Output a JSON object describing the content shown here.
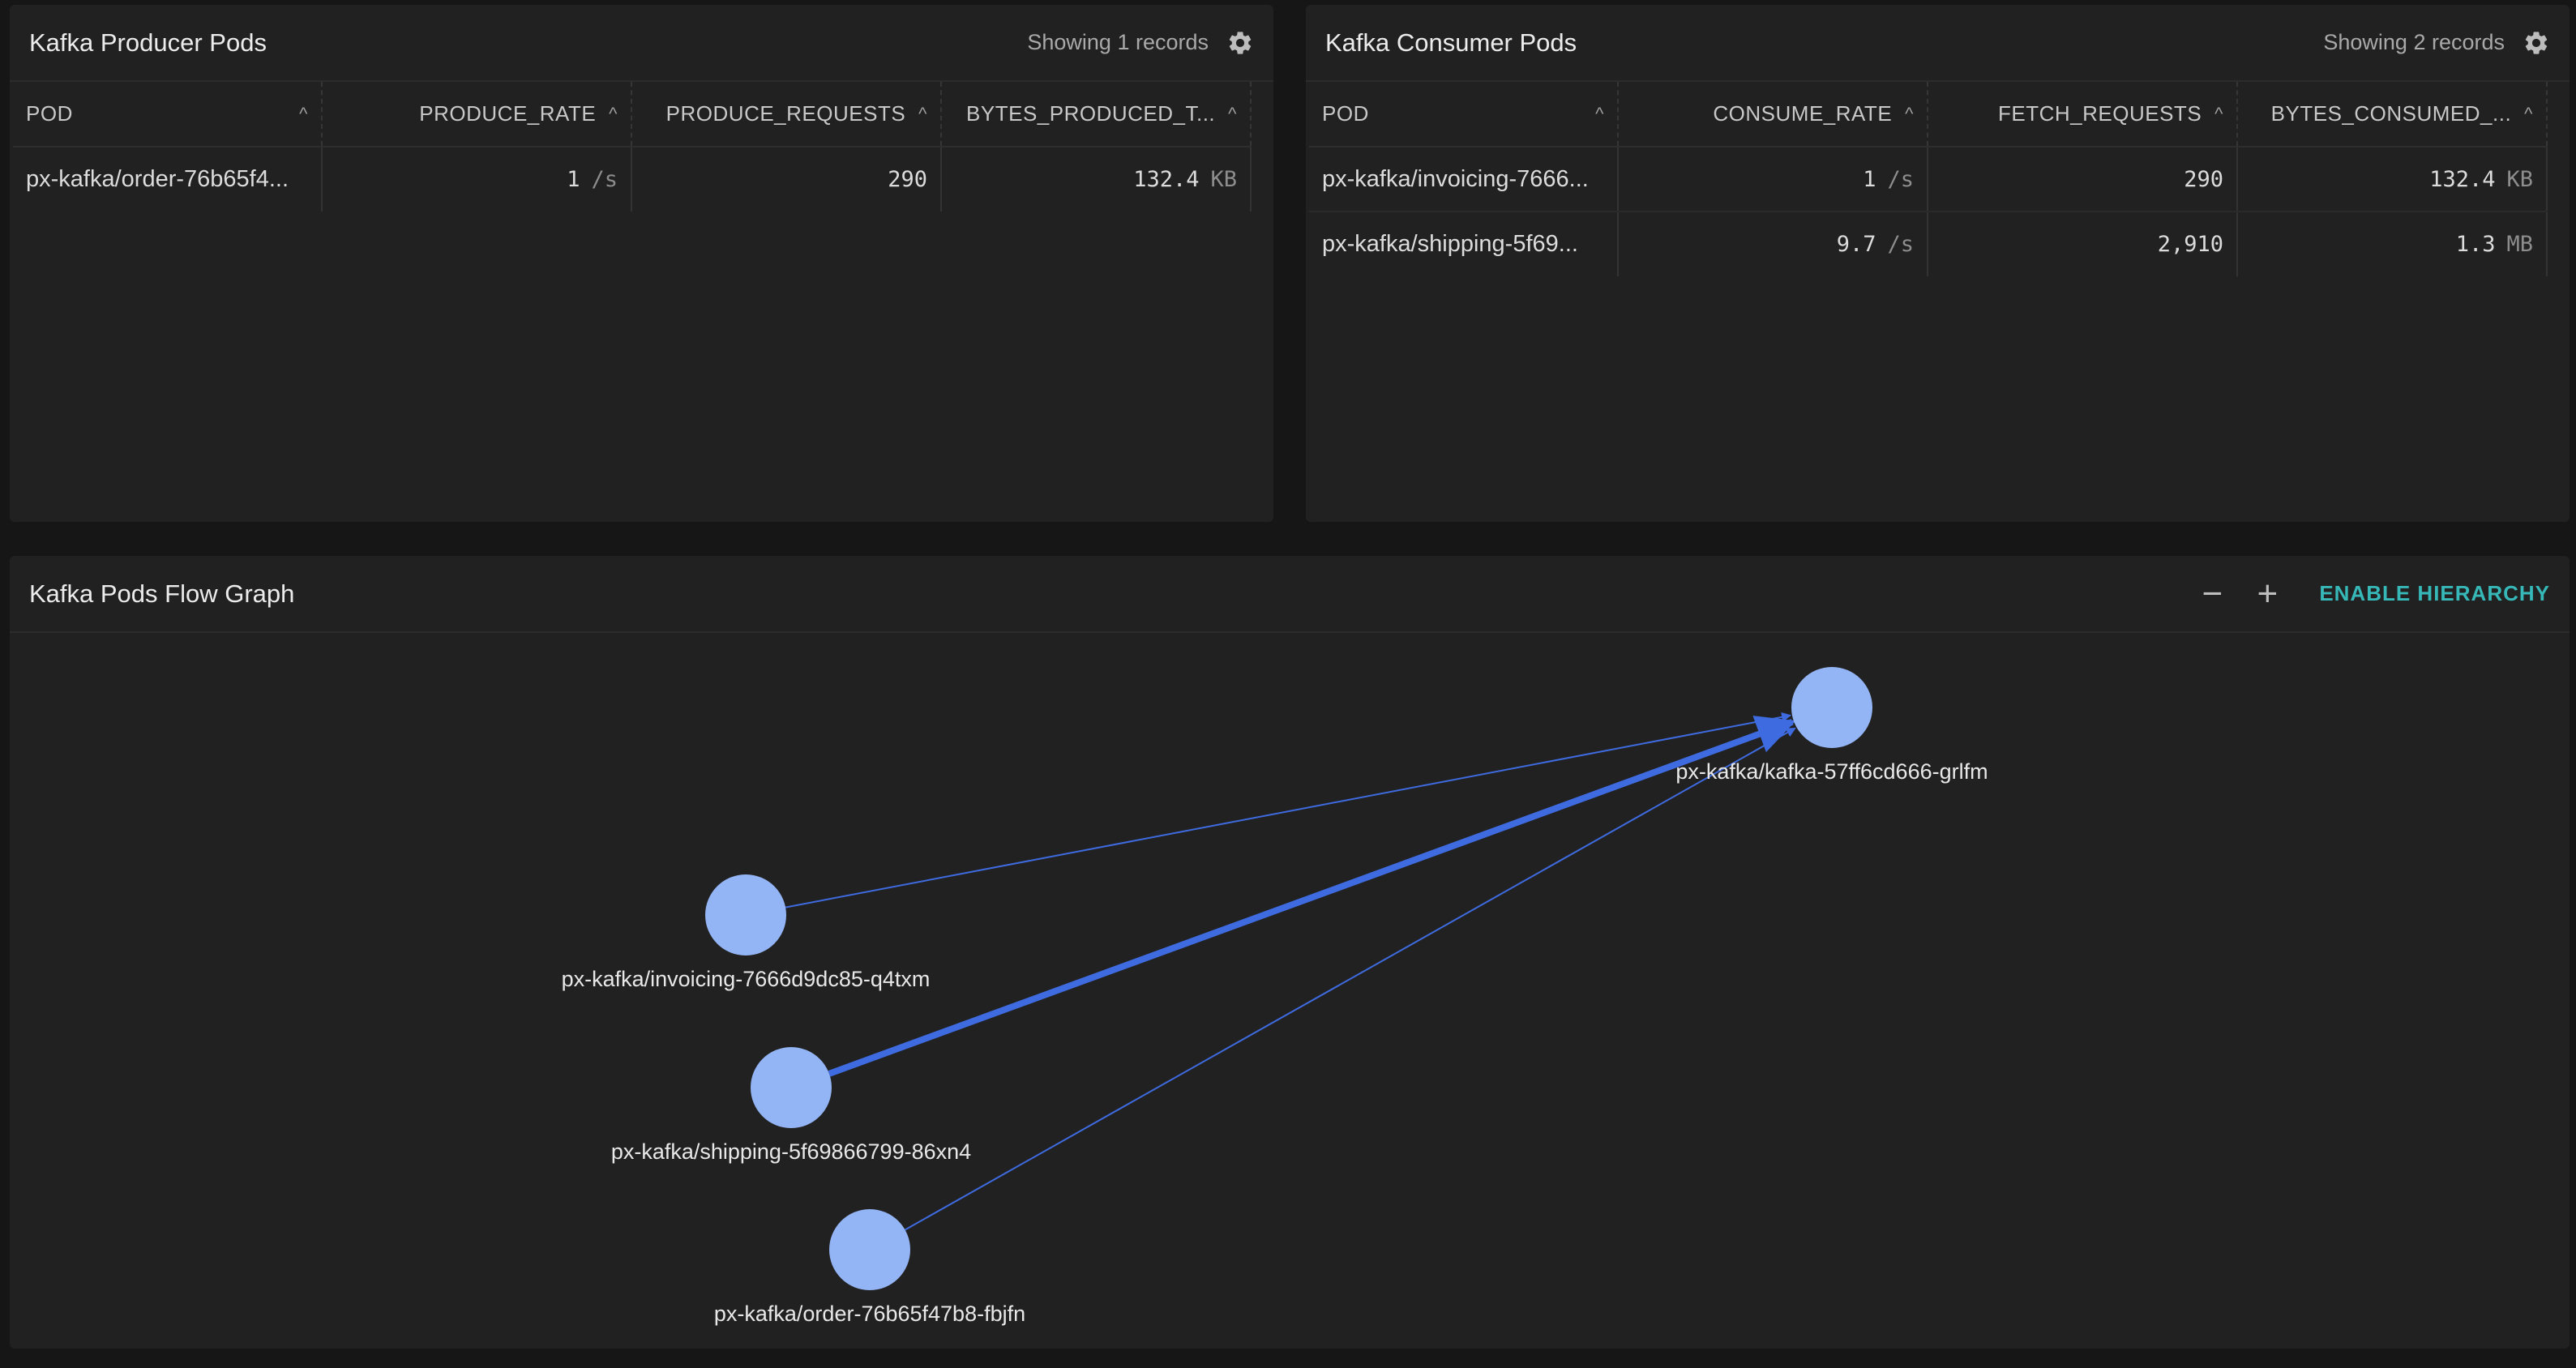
{
  "producer": {
    "title": "Kafka Producer Pods",
    "records": "Showing 1 records",
    "icon": "gear-icon",
    "columns": [
      "POD",
      "PRODUCE_RATE",
      "PRODUCE_REQUESTS",
      "BYTES_PRODUCED_T..."
    ],
    "rows": [
      {
        "pod": "px-kafka/order-76b65f4...",
        "rate": "1",
        "rate_unit": "/s",
        "requests": "290",
        "bytes": "132.4",
        "bytes_unit": "KB"
      }
    ]
  },
  "consumer": {
    "title": "Kafka Consumer Pods",
    "records": "Showing 2 records",
    "icon": "gear-icon",
    "columns": [
      "POD",
      "CONSUME_RATE",
      "FETCH_REQUESTS",
      "BYTES_CONSUMED_..."
    ],
    "rows": [
      {
        "pod": "px-kafka/invoicing-7666...",
        "rate": "1",
        "rate_unit": "/s",
        "requests": "290",
        "bytes": "132.4",
        "bytes_unit": "KB"
      },
      {
        "pod": "px-kafka/shipping-5f69...",
        "rate": "9.7",
        "rate_unit": "/s",
        "requests": "2,910",
        "bytes": "1.3",
        "bytes_unit": "MB"
      }
    ]
  },
  "flow": {
    "title": "Kafka Pods Flow Graph",
    "zoom_out": "−",
    "zoom_in": "+",
    "hierarchy_button": "ENABLE HIERARCHY",
    "nodes": [
      {
        "id": "kafka",
        "label": "px-kafka/kafka-57ff6cd666-grlfm"
      },
      {
        "id": "invoicing",
        "label": "px-kafka/invoicing-7666d9dc85-q4txm"
      },
      {
        "id": "shipping",
        "label": "px-kafka/shipping-5f69866799-86xn4"
      },
      {
        "id": "order",
        "label": "px-kafka/order-76b65f47b8-fbjfn"
      }
    ],
    "edges": [
      {
        "from": "invoicing",
        "to": "kafka"
      },
      {
        "from": "shipping",
        "to": "kafka"
      },
      {
        "from": "order",
        "to": "kafka"
      }
    ]
  },
  "colors": {
    "node_fill": "#93b4f5",
    "edge": "#3f6be0",
    "accent": "#37b8b8"
  }
}
